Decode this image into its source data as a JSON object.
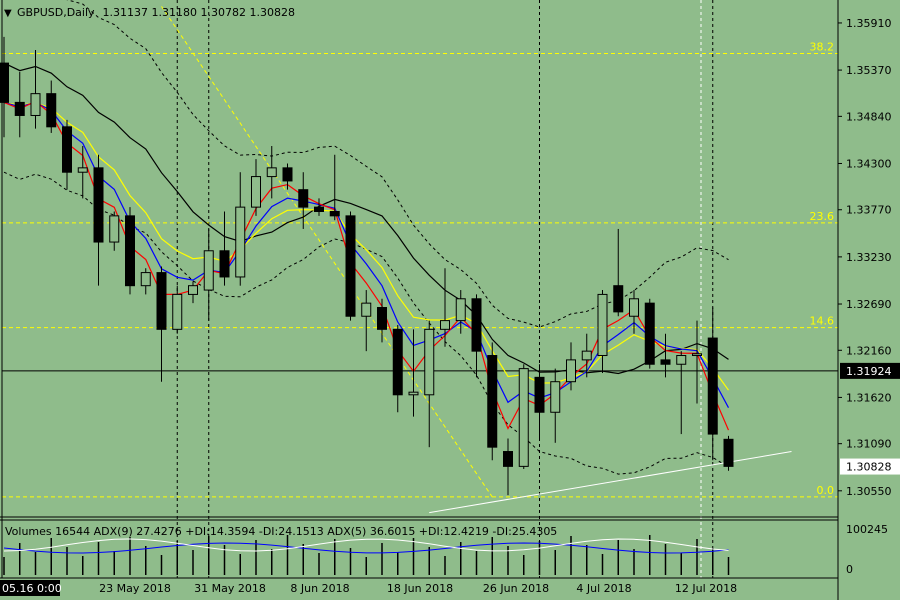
{
  "header": {
    "symbol_label": "GBPUSD,Daily",
    "ohlc": "1.31137 1.31180 1.30782 1.30828"
  },
  "indicator_header": "Volumes 16544  ADX(9) 27.4276 +DI:14.3594 -DI:24.1513  ADX(5) 36.6015 +DI:12.4219 -DI:25.4305",
  "colors": {
    "background": "#8fbc8b",
    "candle": "#000000",
    "ema_fast": "#ff0000",
    "ema_mid": "#0000ff",
    "ema_slow": "#ffff00",
    "sma_long": "#000000",
    "fib": "#ffff00",
    "volume": "#000000",
    "adx_main": "#0000ff",
    "adx_alt": "#ffffff"
  },
  "chart_data": {
    "type": "candlestick",
    "symbol": "GBPUSD",
    "timeframe": "Daily",
    "price_axis": {
      "min": 1.3025,
      "max": 1.3615,
      "ticks": [
        "1.35910",
        "1.35370",
        "1.34840",
        "1.34300",
        "1.33770",
        "1.33230",
        "1.32690",
        "1.32160",
        "1.31620",
        "1.31090",
        "1.30550"
      ],
      "current_price_label": "1.30828",
      "crosshair_label": "1.31924"
    },
    "time_axis_labels": [
      "05.16 0:00",
      "23 May 2018",
      "31 May 2018",
      "8 Jun 2018",
      "18 Jun 2018",
      "26 Jun 2018",
      "4 Jul 2018",
      "12 Jul 2018"
    ],
    "fib_levels": [
      {
        "label": "38.2",
        "price": 1.3556
      },
      {
        "label": "23.6",
        "price": 1.3362
      },
      {
        "label": "14.6",
        "price": 1.3242
      },
      {
        "label": "0.0",
        "price": 1.3048
      }
    ],
    "candles": [
      {
        "o": 1.3545,
        "h": 1.3575,
        "l": 1.346,
        "c": 1.35
      },
      {
        "o": 1.35,
        "h": 1.3535,
        "l": 1.346,
        "c": 1.3485
      },
      {
        "o": 1.3485,
        "h": 1.356,
        "l": 1.347,
        "c": 1.351
      },
      {
        "o": 1.351,
        "h": 1.3525,
        "l": 1.3465,
        "c": 1.3472
      },
      {
        "o": 1.3472,
        "h": 1.348,
        "l": 1.34,
        "c": 1.342
      },
      {
        "o": 1.342,
        "h": 1.345,
        "l": 1.339,
        "c": 1.3425
      },
      {
        "o": 1.3425,
        "h": 1.344,
        "l": 1.329,
        "c": 1.334
      },
      {
        "o": 1.334,
        "h": 1.3375,
        "l": 1.333,
        "c": 1.337
      },
      {
        "o": 1.337,
        "h": 1.338,
        "l": 1.328,
        "c": 1.329
      },
      {
        "o": 1.329,
        "h": 1.331,
        "l": 1.328,
        "c": 1.3305
      },
      {
        "o": 1.3305,
        "h": 1.3312,
        "l": 1.318,
        "c": 1.324
      },
      {
        "o": 1.324,
        "h": 1.329,
        "l": 1.3235,
        "c": 1.328
      },
      {
        "o": 1.328,
        "h": 1.3295,
        "l": 1.327,
        "c": 1.329
      },
      {
        "o": 1.3285,
        "h": 1.3355,
        "l": 1.325,
        "c": 1.333
      },
      {
        "o": 1.333,
        "h": 1.3375,
        "l": 1.329,
        "c": 1.33
      },
      {
        "o": 1.33,
        "h": 1.342,
        "l": 1.329,
        "c": 1.338
      },
      {
        "o": 1.338,
        "h": 1.3435,
        "l": 1.337,
        "c": 1.3415
      },
      {
        "o": 1.3415,
        "h": 1.345,
        "l": 1.339,
        "c": 1.3425
      },
      {
        "o": 1.3425,
        "h": 1.343,
        "l": 1.34,
        "c": 1.341
      },
      {
        "o": 1.34,
        "h": 1.342,
        "l": 1.3355,
        "c": 1.338
      },
      {
        "o": 1.338,
        "h": 1.339,
        "l": 1.337,
        "c": 1.3375
      },
      {
        "o": 1.3375,
        "h": 1.344,
        "l": 1.3365,
        "c": 1.337
      },
      {
        "o": 1.337,
        "h": 1.3375,
        "l": 1.325,
        "c": 1.3255
      },
      {
        "o": 1.3255,
        "h": 1.3285,
        "l": 1.3215,
        "c": 1.327
      },
      {
        "o": 1.3265,
        "h": 1.3275,
        "l": 1.3225,
        "c": 1.324
      },
      {
        "o": 1.324,
        "h": 1.3245,
        "l": 1.3145,
        "c": 1.3165
      },
      {
        "o": 1.3165,
        "h": 1.324,
        "l": 1.314,
        "c": 1.3168
      },
      {
        "o": 1.3165,
        "h": 1.325,
        "l": 1.3105,
        "c": 1.324
      },
      {
        "o": 1.324,
        "h": 1.331,
        "l": 1.322,
        "c": 1.325
      },
      {
        "o": 1.325,
        "h": 1.3285,
        "l": 1.3235,
        "c": 1.3275
      },
      {
        "o": 1.3275,
        "h": 1.328,
        "l": 1.3185,
        "c": 1.3215
      },
      {
        "o": 1.321,
        "h": 1.3225,
        "l": 1.309,
        "c": 1.3105
      },
      {
        "o": 1.31,
        "h": 1.3115,
        "l": 1.305,
        "c": 1.3083
      },
      {
        "o": 1.3083,
        "h": 1.32,
        "l": 1.308,
        "c": 1.3195
      },
      {
        "o": 1.3185,
        "h": 1.32,
        "l": 1.3115,
        "c": 1.3145
      },
      {
        "o": 1.3145,
        "h": 1.3195,
        "l": 1.311,
        "c": 1.318
      },
      {
        "o": 1.318,
        "h": 1.3225,
        "l": 1.317,
        "c": 1.3205
      },
      {
        "o": 1.3205,
        "h": 1.3235,
        "l": 1.3185,
        "c": 1.3215
      },
      {
        "o": 1.321,
        "h": 1.3285,
        "l": 1.319,
        "c": 1.328
      },
      {
        "o": 1.329,
        "h": 1.3355,
        "l": 1.3255,
        "c": 1.326
      },
      {
        "o": 1.3255,
        "h": 1.3285,
        "l": 1.3235,
        "c": 1.3275
      },
      {
        "o": 1.327,
        "h": 1.3275,
        "l": 1.3195,
        "c": 1.32
      },
      {
        "o": 1.3205,
        "h": 1.3235,
        "l": 1.3185,
        "c": 1.32
      },
      {
        "o": 1.32,
        "h": 1.3215,
        "l": 1.312,
        "c": 1.321
      },
      {
        "o": 1.321,
        "h": 1.325,
        "l": 1.3155,
        "c": 1.3212
      },
      {
        "o": 1.323,
        "h": 1.3265,
        "l": 1.309,
        "c": 1.312
      },
      {
        "o": 1.3114,
        "h": 1.3118,
        "l": 1.3078,
        "c": 1.3083
      }
    ]
  }
}
